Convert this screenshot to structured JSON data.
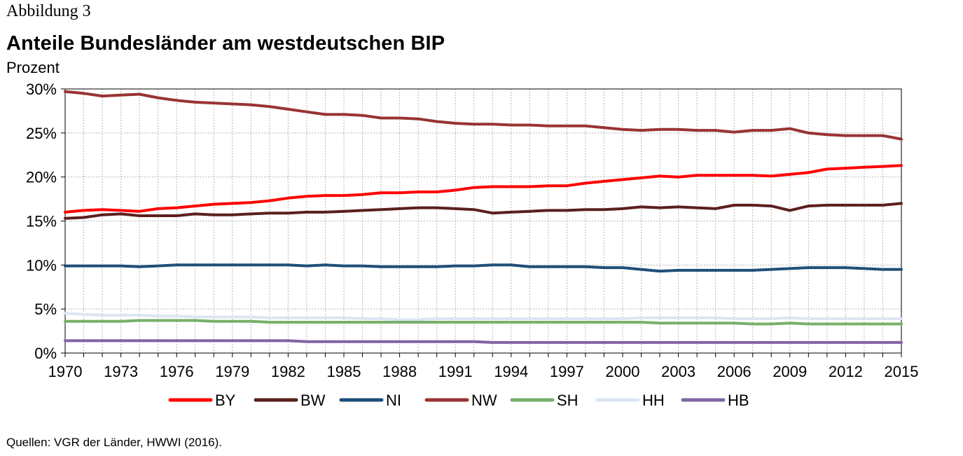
{
  "figure_label": "Abbildung 3",
  "source": "Quellen: VGR der Länder, HWWI (2016).",
  "chart_data": {
    "type": "line",
    "title": "Anteile Bundesländer am westdeutschen BIP",
    "ylabel": "Prozent",
    "xlabel": "",
    "xlim": [
      1970,
      2015
    ],
    "ylim": [
      0,
      30
    ],
    "y_ticks": [
      0,
      5,
      10,
      15,
      20,
      25,
      30
    ],
    "y_tick_labels": [
      "0%",
      "5%",
      "10%",
      "15%",
      "20%",
      "25%",
      "30%"
    ],
    "x_tick_labels": [
      "1970",
      "1973",
      "1976",
      "1979",
      "1982",
      "1985",
      "1988",
      "1991",
      "1994",
      "1997",
      "2000",
      "2003",
      "2006",
      "2009",
      "2012",
      "2015"
    ],
    "grid": true,
    "legend_position": "bottom",
    "x": [
      1970,
      1971,
      1972,
      1973,
      1974,
      1975,
      1976,
      1977,
      1978,
      1979,
      1980,
      1981,
      1982,
      1983,
      1984,
      1985,
      1986,
      1987,
      1988,
      1989,
      1990,
      1991,
      1992,
      1993,
      1994,
      1995,
      1996,
      1997,
      1998,
      1999,
      2000,
      2001,
      2002,
      2003,
      2004,
      2005,
      2006,
      2007,
      2008,
      2009,
      2010,
      2011,
      2012,
      2013,
      2014,
      2015
    ],
    "series": [
      {
        "name": "BY",
        "color": "#ff0000",
        "values": [
          16.0,
          16.2,
          16.3,
          16.2,
          16.1,
          16.4,
          16.5,
          16.7,
          16.9,
          17.0,
          17.1,
          17.3,
          17.6,
          17.8,
          17.9,
          17.9,
          18.0,
          18.2,
          18.2,
          18.3,
          18.3,
          18.5,
          18.8,
          18.9,
          18.9,
          18.9,
          19.0,
          19.0,
          19.3,
          19.5,
          19.7,
          19.9,
          20.1,
          20.0,
          20.2,
          20.2,
          20.2,
          20.2,
          20.1,
          20.3,
          20.5,
          20.9,
          21.0,
          21.1,
          21.2,
          21.3
        ]
      },
      {
        "name": "BW",
        "color": "#5c1f1f",
        "values": [
          15.3,
          15.4,
          15.7,
          15.8,
          15.6,
          15.6,
          15.6,
          15.8,
          15.7,
          15.7,
          15.8,
          15.9,
          15.9,
          16.0,
          16.0,
          16.1,
          16.2,
          16.3,
          16.4,
          16.5,
          16.5,
          16.4,
          16.3,
          15.9,
          16.0,
          16.1,
          16.2,
          16.2,
          16.3,
          16.3,
          16.4,
          16.6,
          16.5,
          16.6,
          16.5,
          16.4,
          16.8,
          16.8,
          16.7,
          16.2,
          16.7,
          16.8,
          16.8,
          16.8,
          16.8,
          17.0
        ]
      },
      {
        "name": "NI",
        "color": "#1f4e79",
        "values": [
          9.9,
          9.9,
          9.9,
          9.9,
          9.8,
          9.9,
          10.0,
          10.0,
          10.0,
          10.0,
          10.0,
          10.0,
          10.0,
          9.9,
          10.0,
          9.9,
          9.9,
          9.8,
          9.8,
          9.8,
          9.8,
          9.9,
          9.9,
          10.0,
          10.0,
          9.8,
          9.8,
          9.8,
          9.8,
          9.7,
          9.7,
          9.5,
          9.3,
          9.4,
          9.4,
          9.4,
          9.4,
          9.4,
          9.5,
          9.6,
          9.7,
          9.7,
          9.7,
          9.6,
          9.5,
          9.5
        ]
      },
      {
        "name": "NW",
        "color": "#993333",
        "values": [
          29.7,
          29.5,
          29.2,
          29.3,
          29.4,
          29.0,
          28.7,
          28.5,
          28.4,
          28.3,
          28.2,
          28.0,
          27.7,
          27.4,
          27.1,
          27.1,
          27.0,
          26.7,
          26.7,
          26.6,
          26.3,
          26.1,
          26.0,
          26.0,
          25.9,
          25.9,
          25.8,
          25.8,
          25.8,
          25.6,
          25.4,
          25.3,
          25.4,
          25.4,
          25.3,
          25.3,
          25.1,
          25.3,
          25.3,
          25.5,
          25.0,
          24.8,
          24.7,
          24.7,
          24.7,
          24.3
        ]
      },
      {
        "name": "SH",
        "color": "#77b06a",
        "values": [
          3.6,
          3.6,
          3.6,
          3.6,
          3.7,
          3.7,
          3.7,
          3.7,
          3.6,
          3.6,
          3.6,
          3.5,
          3.5,
          3.5,
          3.5,
          3.5,
          3.5,
          3.5,
          3.5,
          3.5,
          3.5,
          3.5,
          3.5,
          3.5,
          3.5,
          3.5,
          3.5,
          3.5,
          3.5,
          3.5,
          3.5,
          3.5,
          3.4,
          3.4,
          3.4,
          3.4,
          3.4,
          3.3,
          3.3,
          3.4,
          3.3,
          3.3,
          3.3,
          3.3,
          3.3,
          3.3
        ]
      },
      {
        "name": "HH",
        "color": "#dce6f2",
        "values": [
          4.5,
          4.4,
          4.3,
          4.3,
          4.3,
          4.2,
          4.2,
          4.1,
          4.1,
          4.1,
          4.1,
          4.0,
          4.0,
          4.0,
          4.0,
          4.0,
          3.9,
          3.9,
          3.8,
          3.8,
          3.9,
          3.9,
          3.9,
          3.9,
          3.9,
          3.9,
          3.9,
          3.9,
          3.9,
          3.9,
          3.9,
          4.0,
          4.0,
          4.0,
          4.0,
          4.0,
          3.9,
          3.9,
          3.9,
          4.0,
          3.9,
          3.9,
          3.9,
          3.9,
          3.9,
          3.9
        ]
      },
      {
        "name": "HB",
        "color": "#8064a2",
        "values": [
          1.4,
          1.4,
          1.4,
          1.4,
          1.4,
          1.4,
          1.4,
          1.4,
          1.4,
          1.4,
          1.4,
          1.4,
          1.4,
          1.3,
          1.3,
          1.3,
          1.3,
          1.3,
          1.3,
          1.3,
          1.3,
          1.3,
          1.3,
          1.2,
          1.2,
          1.2,
          1.2,
          1.2,
          1.2,
          1.2,
          1.2,
          1.2,
          1.2,
          1.2,
          1.2,
          1.2,
          1.2,
          1.2,
          1.2,
          1.2,
          1.2,
          1.2,
          1.2,
          1.2,
          1.2,
          1.2
        ]
      }
    ]
  }
}
